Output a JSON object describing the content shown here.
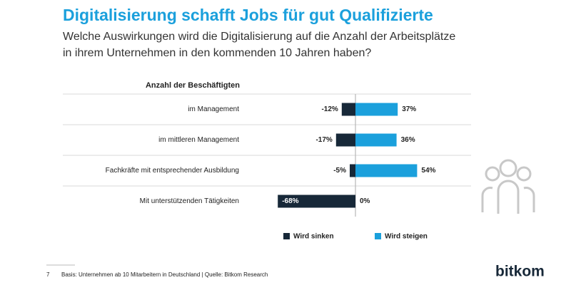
{
  "chart_data": {
    "type": "diverging-bar",
    "title": "Digitalisierung schafft Jobs für gut Qualifizierte",
    "subtitle": "Welche Auswirkungen wird die Digitalisierung auf die Anzahl der Arbeitsplätze in ihrem Unternehmen in den kommenden 10 Jahren haben?",
    "category_header": "Anzahl der Beschäftigten",
    "categories": [
      "im Management",
      "im mittleren Management",
      "Fachkräfte mit entsprechender Ausbildung",
      "Mit unterstützenden Tätigkeiten"
    ],
    "series": [
      {
        "name": "Wird sinken",
        "color": "#172838",
        "values": [
          -12,
          -17,
          -5,
          -68
        ],
        "value_labels": [
          "-12%",
          "-17%",
          "-5%",
          "-68%"
        ]
      },
      {
        "name": "Wird steigen",
        "color": "#1ba0dc",
        "values": [
          37,
          36,
          54,
          0
        ],
        "value_labels": [
          "37%",
          "36%",
          "54%",
          "0%"
        ]
      }
    ],
    "page_number": "7",
    "source": "Basis: Unternehmen ab 10 Mitarbeitern in Deutschland | Quelle: Bitkom Research",
    "logo": "bitkom"
  }
}
